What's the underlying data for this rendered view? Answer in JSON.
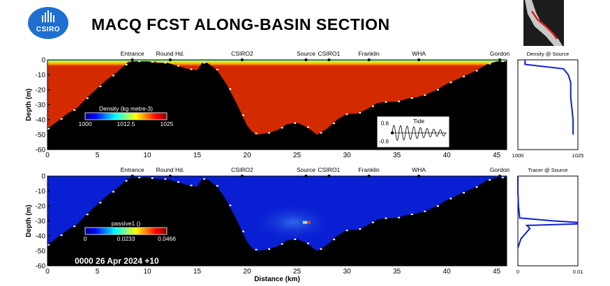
{
  "header": {
    "logo_text": "CSIRO",
    "title": "MACQ FCST ALONG-BASIN SECTION"
  },
  "chart_data": [
    {
      "type": "heatmap",
      "variable": "Density",
      "colorbar": {
        "label": "Density (kg metre-3)",
        "ticks": [
          "1000",
          "1012.5",
          "1025"
        ],
        "range": [
          1000,
          1025
        ]
      },
      "xlabel": "",
      "ylabel": "Depth (m)",
      "xlim": [
        0,
        46
      ],
      "ylim": [
        -60,
        0
      ],
      "xticks": [
        0,
        5,
        10,
        15,
        20,
        25,
        30,
        35,
        40,
        45
      ],
      "yticks": [
        0,
        -10,
        -20,
        -30,
        -40,
        -50,
        -60
      ],
      "stations": [
        {
          "name": "Entrance",
          "km": 8.5
        },
        {
          "name": "Round Hd.",
          "km": 12.3
        },
        {
          "name": "CSIRO2",
          "km": 19.5
        },
        {
          "name": "Source",
          "km": 25.9
        },
        {
          "name": "CSIRO1",
          "km": 28.2
        },
        {
          "name": "Franklin",
          "km": 32.2
        },
        {
          "name": "WHA",
          "km": 37.2
        },
        {
          "name": "Gordon",
          "km": 45.3
        }
      ],
      "bathymetry": {
        "km": [
          0,
          1,
          2,
          3,
          4,
          5,
          6,
          7,
          7.5,
          8,
          8.5,
          9,
          10,
          11,
          12,
          13,
          14,
          15,
          15.5,
          16,
          17,
          18,
          19,
          20,
          20.5,
          21,
          22,
          23,
          24,
          25,
          26,
          27,
          28,
          29,
          30,
          31,
          32,
          33,
          34,
          35,
          36,
          37,
          38,
          39,
          40,
          41,
          42,
          43,
          44,
          45,
          46
        ],
        "depth": [
          -46,
          -41,
          -36,
          -32,
          -25,
          -19,
          -13,
          -8,
          -5,
          -2,
          -1,
          -1,
          -1,
          -2,
          -2,
          -4,
          -6,
          -7,
          -2,
          -2,
          -7,
          -17,
          -30,
          -44,
          -48,
          -50,
          -49,
          -47,
          -43,
          -42,
          -45,
          -50,
          -46,
          -40,
          -36,
          -36,
          -33,
          -29,
          -28,
          -28,
          -26,
          -25,
          -23,
          -20,
          -16,
          -13,
          -10,
          -7,
          -3,
          -1,
          -1
        ]
      }
    },
    {
      "type": "heatmap",
      "variable": "passive1",
      "colorbar": {
        "label": "passive1 ()",
        "ticks": [
          "0",
          "0.0233",
          "0.0466"
        ],
        "range": [
          0,
          0.0466
        ]
      },
      "xlabel": "Distance (km)",
      "ylabel": "Depth (m)",
      "xlim": [
        0,
        46
      ],
      "ylim": [
        -60,
        0
      ],
      "xticks": [
        0,
        5,
        10,
        15,
        20,
        25,
        30,
        35,
        40,
        45
      ],
      "yticks": [
        0,
        -10,
        -20,
        -30,
        -40,
        -50,
        -60
      ],
      "timestamp": "0000 26 Apr 2024 +10",
      "plume": {
        "km": 26,
        "depth": -31
      }
    },
    {
      "type": "line",
      "title": "Density @ Source",
      "xlim": [
        1000,
        1025
      ],
      "xticks": [
        "1000",
        "1025"
      ],
      "x": [
        1003,
        1003,
        1019,
        1021,
        1022,
        1022,
        1023,
        1023
      ],
      "y": [
        0,
        -3,
        -6,
        -10,
        -15,
        -25,
        -40,
        -50
      ]
    },
    {
      "type": "line",
      "title": "Tracer @ Source",
      "xlim": [
        0,
        0.01
      ],
      "xticks": [
        "0",
        "0.01"
      ],
      "x": [
        0,
        0,
        0.0001,
        0.0003,
        0.006,
        0.0099,
        0.0099,
        0.0015,
        0.002,
        0.0005,
        0
      ],
      "y": [
        0,
        -10,
        -20,
        -28,
        -30,
        -31,
        -32,
        -33,
        -35,
        -42,
        -48
      ]
    },
    {
      "type": "line",
      "title": "Tide",
      "ylim": [
        -0.6,
        0.6
      ],
      "yticks": [
        "0.6",
        "-0.6"
      ],
      "cycles": 8
    }
  ]
}
